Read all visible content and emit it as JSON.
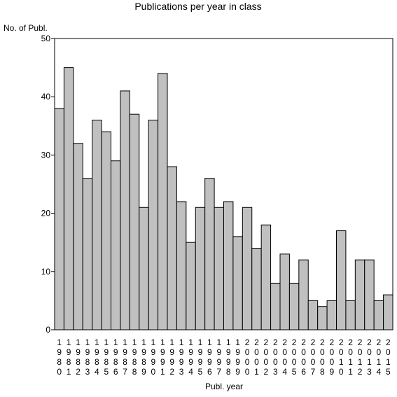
{
  "chart_data": {
    "type": "bar",
    "title": "Publications per year in class",
    "ylabel": "No. of Publ.",
    "xlabel": "Publ. year",
    "ylim": [
      0,
      50
    ],
    "yticks": [
      0,
      10,
      20,
      30,
      40,
      50
    ],
    "grid": false,
    "bar_color": "#c0c0c0",
    "categories": [
      "1980",
      "1981",
      "1982",
      "1983",
      "1984",
      "1985",
      "1986",
      "1987",
      "1988",
      "1989",
      "1990",
      "1991",
      "1992",
      "1993",
      "1994",
      "1995",
      "1996",
      "1997",
      "1998",
      "1999",
      "2000",
      "2001",
      "2002",
      "2003",
      "2004",
      "2005",
      "2006",
      "2007",
      "2008",
      "2009",
      "2010",
      "2011",
      "2012",
      "2013",
      "2014",
      "2015"
    ],
    "values": [
      38,
      45,
      32,
      26,
      36,
      34,
      29,
      41,
      37,
      21,
      36,
      44,
      28,
      22,
      15,
      21,
      26,
      21,
      22,
      16,
      21,
      14,
      18,
      8,
      13,
      8,
      12,
      5,
      4,
      5,
      17,
      5,
      12,
      12,
      5,
      6
    ]
  }
}
